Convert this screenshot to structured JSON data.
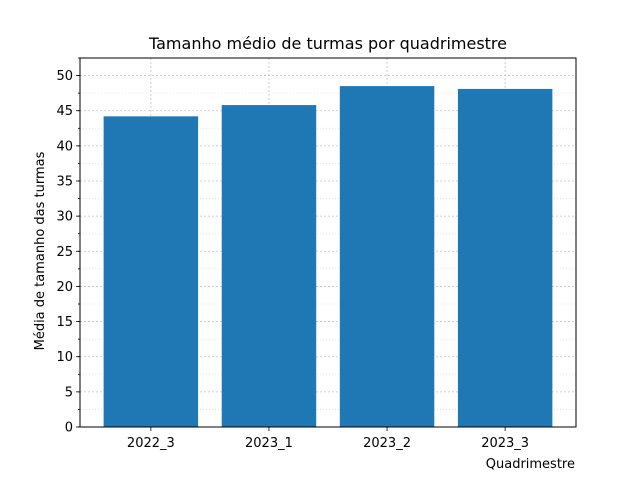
{
  "chart_data": {
    "type": "bar",
    "title": "Tamanho médio de turmas por quadrimestre",
    "xlabel": "Quadrimestre",
    "ylabel": "Média de tamanho das turmas",
    "categories": [
      "2022_3",
      "2023_1",
      "2023_2",
      "2023_3"
    ],
    "values": [
      44.2,
      45.8,
      48.5,
      48.1
    ],
    "ylim": [
      0,
      52.5
    ],
    "yticks": [
      0,
      5,
      10,
      15,
      20,
      25,
      30,
      35,
      40,
      45,
      50
    ],
    "yminor_step": 2.5,
    "grid": true,
    "legend": "none",
    "bar_color": "#1f77b4"
  }
}
